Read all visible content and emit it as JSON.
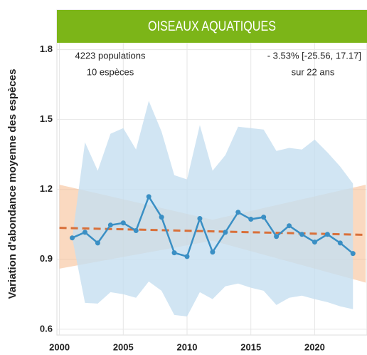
{
  "chart_data": {
    "type": "line",
    "title": "OISEAUX AQUATIQUES",
    "y_label": "Variation d'abondance moyenne des espèces",
    "annotations": [
      "4223  populations",
      "10 espèces",
      "- 3.53% [-25.56, 17.17]",
      "sur 22 ans"
    ],
    "x": [
      2001,
      2002,
      2003,
      2004,
      2005,
      2006,
      2007,
      2008,
      2009,
      2010,
      2011,
      2012,
      2013,
      2014,
      2015,
      2016,
      2017,
      2018,
      2019,
      2020,
      2021,
      2022,
      2023
    ],
    "series": [
      {
        "color": "#3a8fc4",
        "values": [
          0.992,
          1.016,
          0.97,
          1.047,
          1.056,
          1.023,
          1.169,
          1.081,
          0.928,
          0.912,
          1.075,
          0.931,
          1.016,
          1.102,
          1.072,
          1.081,
          0.998,
          1.044,
          1.007,
          0.974,
          1.007,
          0.97,
          0.925
        ],
        "upper": [
          0.992,
          1.402,
          1.28,
          1.439,
          1.463,
          1.371,
          1.58,
          1.448,
          1.261,
          1.243,
          1.476,
          1.28,
          1.347,
          1.469,
          1.463,
          1.457,
          1.365,
          1.378,
          1.371,
          1.414,
          1.359,
          1.298,
          1.225
        ],
        "lower": [
          0.992,
          0.713,
          0.71,
          0.759,
          0.75,
          0.735,
          0.805,
          0.765,
          0.661,
          0.655,
          0.759,
          0.729,
          0.784,
          0.796,
          0.778,
          0.765,
          0.704,
          0.735,
          0.744,
          0.729,
          0.716,
          0.698,
          0.686
        ],
        "band_color": "#c5dff0"
      }
    ],
    "trend": {
      "x": [
        2000,
        2024
      ],
      "values": [
        1.035,
        1.005
      ],
      "color": "#d9703a"
    },
    "trend_envelope": {
      "x": [
        2000,
        2012,
        2024
      ],
      "upper": [
        1.22,
        1.07,
        1.22
      ],
      "lower": [
        0.86,
        0.98,
        0.8
      ],
      "color": "#f6b98d"
    },
    "header_color": "#7cb518",
    "xlim": [
      1999.8,
      2024.1
    ],
    "xticks": [
      2000,
      2005,
      2010,
      2015,
      2020
    ],
    "ylim": [
      0.575,
      1.97
    ],
    "yticks": [
      0.6,
      0.9,
      1.2,
      1.5,
      1.8
    ],
    "grid": true
  }
}
